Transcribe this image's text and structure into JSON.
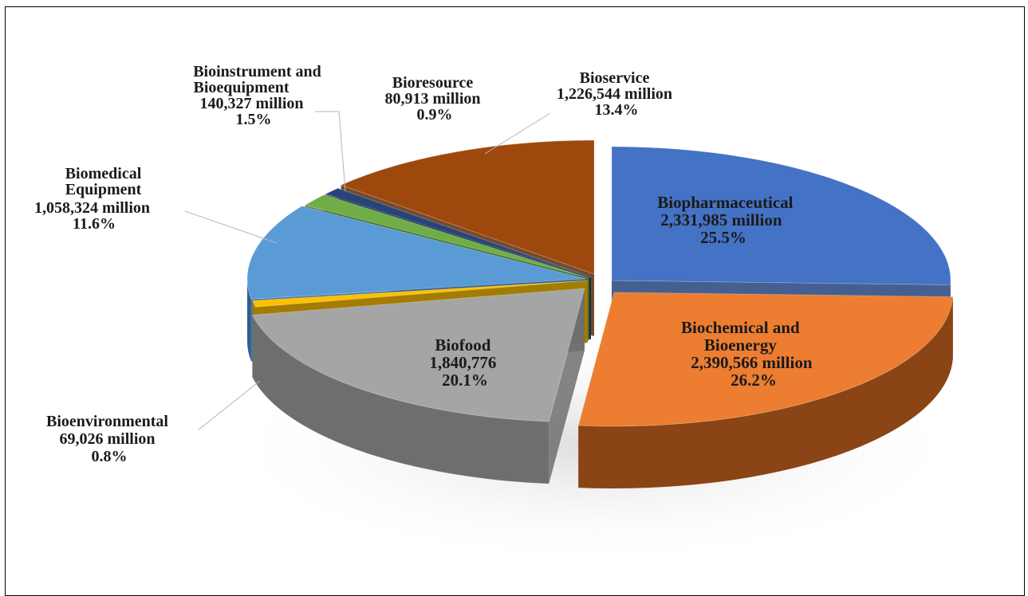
{
  "chart_data": {
    "type": "pie",
    "style": "3d-exploded",
    "slices": [
      {
        "name": "Biopharmaceutical",
        "value_line": "2,331,985 million",
        "pct_line": "25.5%",
        "value": 2331985,
        "percent": 25.5,
        "color": "#4472C4",
        "side_color": "#24447C"
      },
      {
        "name": "Biochemical and Bioenergy",
        "value_line": "2,390,566 million",
        "pct_line": "26.2%",
        "value": 2390566,
        "percent": 26.2,
        "color": "#ED7D31",
        "side_color": "#8A4415"
      },
      {
        "name": "Biofood",
        "value_line": "1,840,776",
        "pct_line": "20.1%",
        "value": 1840776,
        "percent": 20.1,
        "color": "#A5A5A5",
        "side_color": "#6E6E6E"
      },
      {
        "name": "Bioenvironmental",
        "value_line": "69,026 million",
        "pct_line": "0.8%",
        "value": 69026,
        "percent": 0.8,
        "color": "#FFC000",
        "side_color": "#A67C00"
      },
      {
        "name": "Biomedical Equipment",
        "value_line": "1,058,324 million",
        "pct_line": "11.6%",
        "value": 1058324,
        "percent": 11.6,
        "color": "#5B9BD5",
        "side_color": "#2E5E8C"
      },
      {
        "name": "Bioinstrument and Bioequipment",
        "value_line": "140,327 million",
        "pct_line": "1.5%",
        "value": 140327,
        "percent": 1.5,
        "color": "#70AD47",
        "side_color": "#3F6B24"
      },
      {
        "name": "Bioresource",
        "value_line": "80,913 million",
        "pct_line": "0.9%",
        "value": 80913,
        "percent": 0.9,
        "color": "#264478",
        "side_color": "#14264A"
      },
      {
        "name": "Bioservice",
        "value_line": "1,226,544 million",
        "pct_line": "13.4%",
        "value": 1226544,
        "percent": 13.4,
        "color": "#9E480E",
        "side_color": "#5E2A08"
      }
    ],
    "labels": {
      "biopharmaceutical": [
        "Biopharmaceutical",
        "2,331,985 million",
        "25.5%"
      ],
      "biochemical": [
        "Biochemical and",
        "Bioenergy",
        "2,390,566 million",
        "26.2%"
      ],
      "biofood": [
        "Biofood",
        "1,840,776",
        "20.1%"
      ],
      "bioenvironmental": [
        "Bioenvironmental",
        "69,026 million",
        "0.8%"
      ],
      "biomedical": [
        "Biomedical",
        "Equipment",
        "1,058,324 million",
        "11.6%"
      ],
      "bioinstrument": [
        "Bioinstrument and",
        "Bioequipment",
        "140,327 million",
        "1.5%"
      ],
      "bioresource": [
        "Bioresource",
        "80,913 million",
        "0.9%"
      ],
      "bioservice": [
        "Bioservice",
        "1,226,544 million",
        "13.4%"
      ]
    }
  }
}
